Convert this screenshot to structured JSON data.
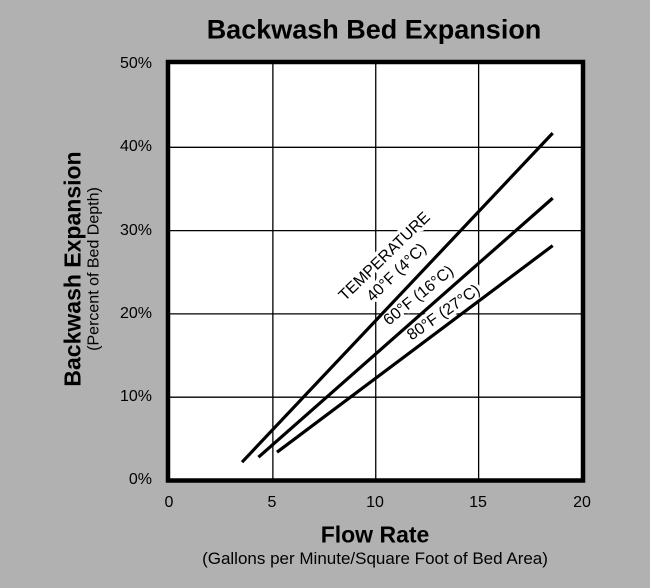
{
  "chart_data": {
    "type": "line",
    "title": "Backwash Bed Expansion",
    "xlabel": "Flow Rate",
    "xlabel_sub": "(Gallons per Minute/Square Foot of Bed Area)",
    "ylabel": "Backwash Expansion",
    "ylabel_sub": "(Percent of Bed Depth)",
    "xlim": [
      0,
      20
    ],
    "ylim": [
      0,
      50
    ],
    "x_ticks": [
      0,
      5,
      10,
      15,
      20
    ],
    "x_tick_labels": [
      "0",
      "5",
      "10",
      "15",
      "20"
    ],
    "y_ticks": [
      0,
      10,
      20,
      30,
      40,
      50
    ],
    "y_tick_labels": [
      "0%",
      "10%",
      "20%",
      "30%",
      "40%",
      "50%"
    ],
    "grid": "on",
    "legend_style": "inline-rotated-labels-on-lines",
    "annotation_header": "TEMPERATURE",
    "series": [
      {
        "name": "40°F (4°C)",
        "label_lines": [
          "TEMPERATURE",
          "40°F (4°C)"
        ],
        "points": [
          [
            3.5,
            2.2
          ],
          [
            18.6,
            41.7
          ]
        ],
        "color": "#000000"
      },
      {
        "name": "60°F (16°C)",
        "label_lines": [
          "60°F (16°C)"
        ],
        "points": [
          [
            4.3,
            2.8
          ],
          [
            18.6,
            33.9
          ]
        ],
        "color": "#000000"
      },
      {
        "name": "80°F (27°C)",
        "label_lines": [
          "80°F (27°C)"
        ],
        "points": [
          [
            5.2,
            3.4
          ],
          [
            18.6,
            28.2
          ]
        ],
        "color": "#000000"
      }
    ],
    "colors": {
      "background": "#b1b1b1",
      "plot_background": "#ffffff",
      "axis_border": "#000000",
      "grid": "#000000",
      "line": "#000000",
      "text": "#000000"
    }
  }
}
